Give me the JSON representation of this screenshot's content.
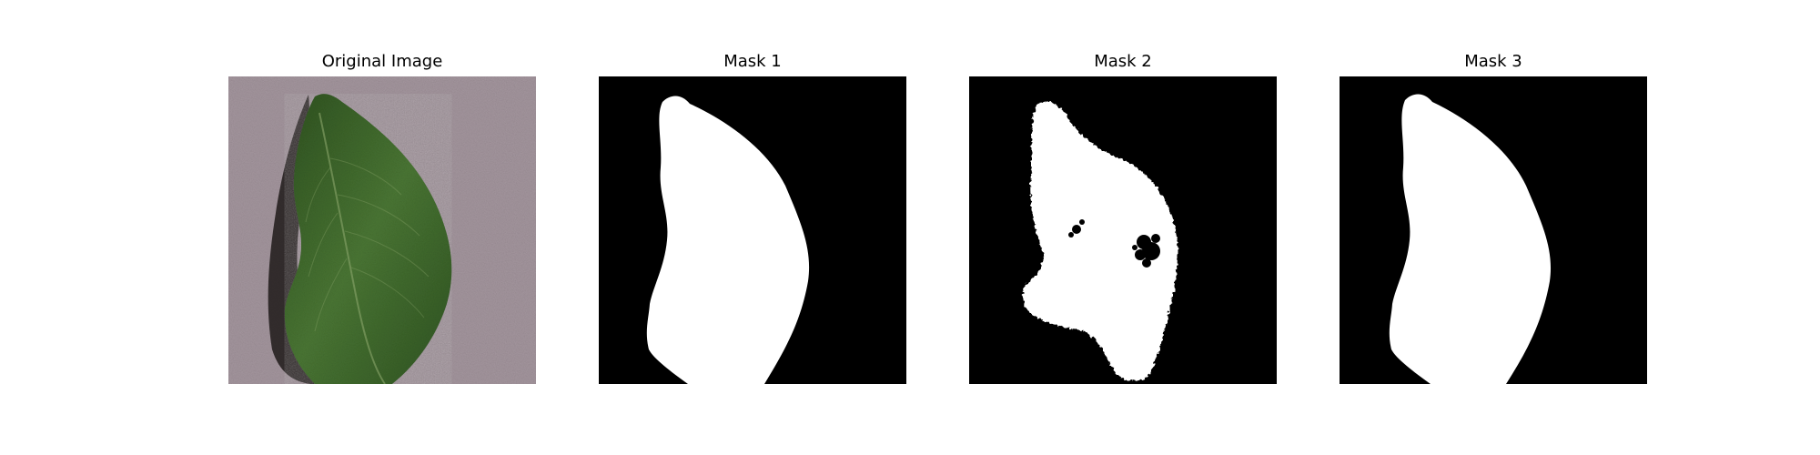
{
  "figure": {
    "panels": [
      {
        "id": "original",
        "title": "Original Image",
        "kind": "photo"
      },
      {
        "id": "mask1",
        "title": "Mask 1",
        "kind": "mask"
      },
      {
        "id": "mask2",
        "title": "Mask 2",
        "kind": "mask"
      },
      {
        "id": "mask3",
        "title": "Mask 3",
        "kind": "mask"
      }
    ]
  },
  "colors": {
    "background": "#ffffff",
    "mask_background": "#000000",
    "mask_foreground": "#ffffff",
    "surface": "#a3959d",
    "leaf_dark": "#2a4a1c",
    "leaf_mid": "#3f6a2a",
    "leaf_light": "#5f8a4a",
    "shadow": "#1a1716"
  }
}
